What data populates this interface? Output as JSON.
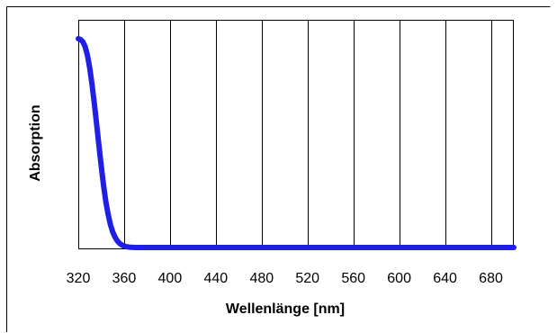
{
  "chart_data": {
    "type": "line",
    "xlabel": "Wellenlänge [nm]",
    "ylabel": "Absorption",
    "xlim": [
      320,
      700
    ],
    "x_ticks": [
      320,
      360,
      400,
      440,
      480,
      520,
      560,
      600,
      640,
      680
    ],
    "ylim": [
      0,
      1
    ],
    "y_ticks_shown": false,
    "grid": "vertical",
    "legend": "none",
    "series": [
      {
        "color": "#1f1fe6",
        "x": [
          320,
          322,
          324,
          326,
          328,
          330,
          332,
          334,
          336,
          338,
          340,
          342,
          344,
          346,
          348,
          350,
          352,
          354,
          356,
          358,
          360,
          362,
          364,
          366,
          368,
          370,
          380,
          400,
          450,
          500,
          550,
          600,
          650,
          700
        ],
        "y": [
          1.0,
          0.996,
          0.985,
          0.962,
          0.92,
          0.86,
          0.78,
          0.69,
          0.59,
          0.49,
          0.39,
          0.3,
          0.22,
          0.16,
          0.11,
          0.075,
          0.05,
          0.032,
          0.02,
          0.012,
          0.007,
          0.004,
          0.002,
          0.001,
          0.0005,
          0.0,
          0.0,
          0.0,
          0.0,
          0.0,
          0.0,
          0.0,
          0.0,
          0.0
        ]
      }
    ]
  },
  "colors": {
    "frame": "#000000",
    "grid": "#000000",
    "series": "#1f1fe6"
  }
}
